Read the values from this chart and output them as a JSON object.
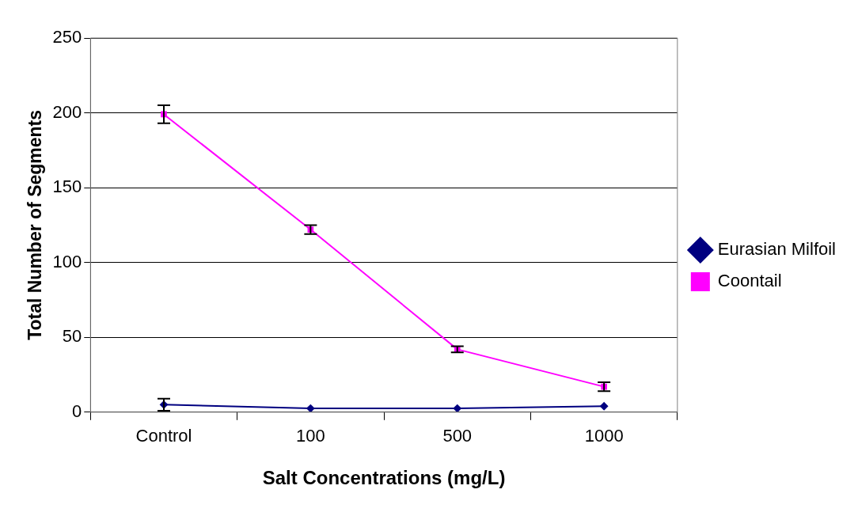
{
  "chart_data": {
    "type": "line",
    "xlabel": "Salt Concentrations (mg/L)",
    "ylabel": "Total Number of Segments",
    "categories": [
      "Control",
      "100",
      "500",
      "1000"
    ],
    "series": [
      {
        "name": "Eurasian Milfoil",
        "color": "#000080",
        "values": [
          5,
          2.5,
          2.5,
          4
        ],
        "errors": [
          4,
          null,
          null,
          null
        ],
        "marker": "diamond"
      },
      {
        "name": "Coontail",
        "color": "#ff00ff",
        "values": [
          199,
          122,
          42,
          17
        ],
        "errors": [
          6,
          3,
          2,
          3
        ],
        "marker": "square"
      }
    ],
    "ylim": [
      0,
      250
    ],
    "yticks": [
      0,
      50,
      100,
      150,
      200,
      250
    ],
    "grid": "y",
    "legend": "right",
    "line_style": "solid"
  }
}
